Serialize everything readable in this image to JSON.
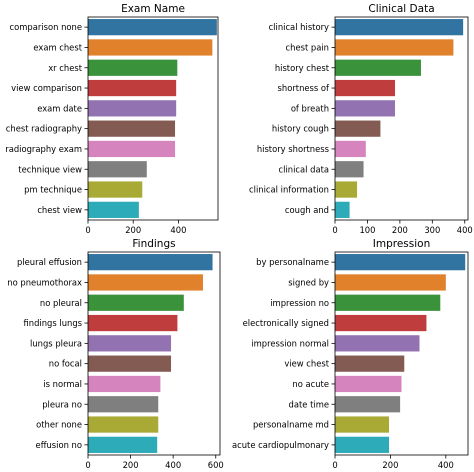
{
  "chart_data": [
    {
      "type": "bar",
      "orientation": "horizontal",
      "title": "Exam Name",
      "categories": [
        "comparison none",
        "exam chest",
        "xr chest",
        "view comparison",
        "exam date",
        "chest radiography",
        "radiography exam",
        "technique view",
        "pm technique",
        "chest view"
      ],
      "values": [
        570,
        550,
        395,
        390,
        390,
        385,
        385,
        260,
        240,
        225
      ],
      "xlim": [
        0,
        575
      ],
      "xticks": [
        0,
        200,
        400
      ],
      "colors": [
        "#3274a1",
        "#e1812c",
        "#3a923a",
        "#c03d3e",
        "#9372b2",
        "#845b53",
        "#d684bd",
        "#7f7f7f",
        "#a9aa35",
        "#2eabb8"
      ]
    },
    {
      "type": "bar",
      "orientation": "horizontal",
      "title": "Clinical Data",
      "categories": [
        "clinical history",
        "chest pain",
        "history chest",
        "shortness of",
        "of breath",
        "history cough",
        "history shortness",
        "clinical data",
        "clinical information",
        "cough and"
      ],
      "values": [
        395,
        365,
        265,
        185,
        185,
        140,
        95,
        88,
        68,
        45
      ],
      "xlim": [
        0,
        410
      ],
      "xticks": [
        0,
        100,
        200,
        300,
        400
      ],
      "colors": [
        "#3274a1",
        "#e1812c",
        "#3a923a",
        "#c03d3e",
        "#9372b2",
        "#845b53",
        "#d684bd",
        "#7f7f7f",
        "#a9aa35",
        "#2eabb8"
      ]
    },
    {
      "type": "bar",
      "orientation": "horizontal",
      "title": "Findings",
      "categories": [
        "pleural effusion",
        "no pneumothorax",
        "no pleural",
        "findings lungs",
        "lungs pleura",
        "no focal",
        "is normal",
        "pleura no",
        "other none",
        "effusion no"
      ],
      "values": [
        585,
        540,
        450,
        420,
        390,
        390,
        340,
        330,
        330,
        325
      ],
      "xlim": [
        0,
        620
      ],
      "xticks": [
        0,
        200,
        400,
        600
      ],
      "colors": [
        "#3274a1",
        "#e1812c",
        "#3a923a",
        "#c03d3e",
        "#9372b2",
        "#845b53",
        "#d684bd",
        "#7f7f7f",
        "#a9aa35",
        "#2eabb8"
      ]
    },
    {
      "type": "bar",
      "orientation": "horizontal",
      "title": "Impression",
      "categories": [
        "by personalname",
        "signed by",
        "impression no",
        "electronically signed",
        "impression normal",
        "view chest",
        "no acute",
        "date time",
        "personalname md",
        "acute cardiopulmonary"
      ],
      "values": [
        470,
        400,
        380,
        330,
        305,
        250,
        240,
        235,
        195,
        195
      ],
      "xlim": [
        0,
        480
      ],
      "xticks": [
        0,
        200,
        400
      ],
      "colors": [
        "#3274a1",
        "#e1812c",
        "#3a923a",
        "#c03d3e",
        "#9372b2",
        "#845b53",
        "#d684bd",
        "#7f7f7f",
        "#a9aa35",
        "#2eabb8"
      ]
    }
  ]
}
